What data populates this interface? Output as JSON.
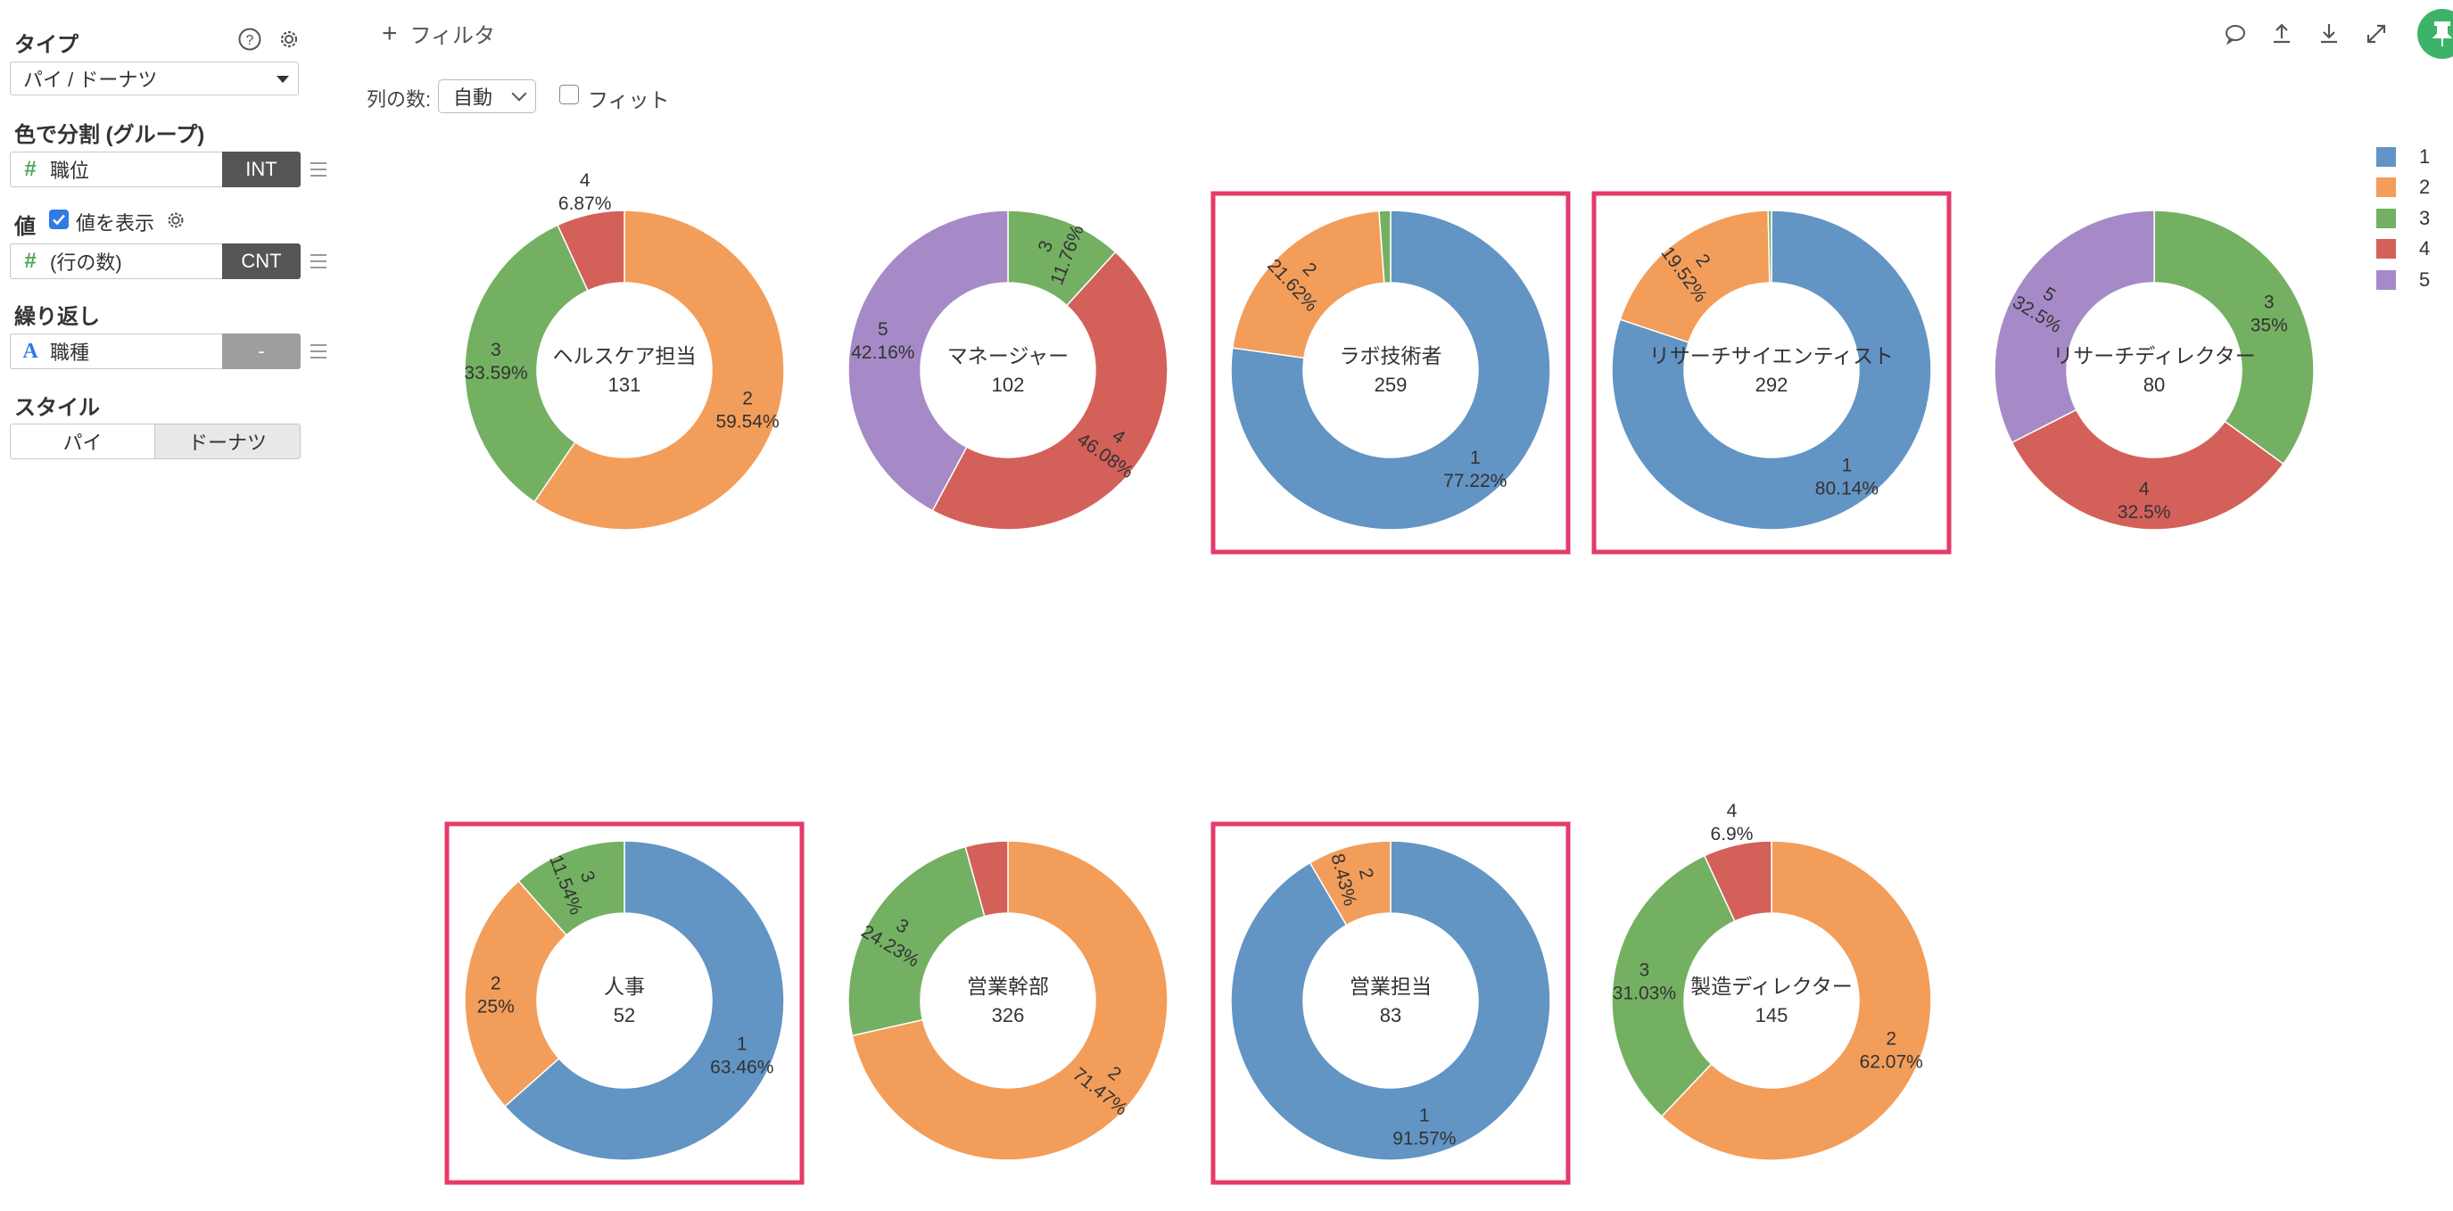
{
  "panel": {
    "type_label": "タイプ",
    "type_value": "パイ / ドーナツ",
    "group_label": "色で分割 (グループ)",
    "group_field": "職位",
    "group_tag": "INT",
    "value_label": "値",
    "show_value_label": "値を表示",
    "value_field": "(行の数)",
    "value_tag": "CNT",
    "repeat_label": "繰り返し",
    "repeat_field": "職種",
    "repeat_tag": "-",
    "style_label": "スタイル",
    "style_pie": "パイ",
    "style_donut": "ドーナツ"
  },
  "toolbar": {
    "filter_label": "フィルタ",
    "cols_label": "列の数:",
    "cols_value": "自動",
    "fit_label": "フィット"
  },
  "colors": {
    "1": "#6294c4",
    "2": "#f39d5a",
    "3": "#74b062",
    "4": "#d4605a",
    "5": "#a68ac7",
    "highlight": "#e53a6a",
    "tag_dark": "#555555",
    "tag_light": "#9e9e9e",
    "pin": "#3db36a"
  },
  "legend": [
    "1",
    "2",
    "3",
    "4",
    "5"
  ],
  "chart_data": {
    "type": "pie",
    "style": "donut",
    "legend_position": "top-right",
    "charts": [
      {
        "title": "ヘルスケア担当",
        "total": "131",
        "highlighted": false,
        "slices": [
          {
            "key": "2",
            "pct": "59.54%",
            "value": 59.54
          },
          {
            "key": "3",
            "pct": "33.59%",
            "value": 33.59
          },
          {
            "key": "4",
            "pct": "6.87%",
            "value": 6.87
          }
        ]
      },
      {
        "title": "マネージャー",
        "total": "102",
        "highlighted": false,
        "slices": [
          {
            "key": "3",
            "pct": "11.76%",
            "value": 11.76
          },
          {
            "key": "4",
            "pct": "46.08%",
            "value": 46.08
          },
          {
            "key": "5",
            "pct": "42.16%",
            "value": 42.16
          }
        ]
      },
      {
        "title": "ラボ技術者",
        "total": "259",
        "highlighted": true,
        "slices": [
          {
            "key": "1",
            "pct": "77.22%",
            "value": 77.22
          },
          {
            "key": "2",
            "pct": "21.62%",
            "value": 21.62
          },
          {
            "key": "3",
            "pct": "",
            "value": 1.16
          }
        ]
      },
      {
        "title": "リサーチサイエンティスト",
        "total": "292",
        "highlighted": true,
        "slices": [
          {
            "key": "1",
            "pct": "80.14%",
            "value": 80.14
          },
          {
            "key": "2",
            "pct": "19.52%",
            "value": 19.52
          },
          {
            "key": "3",
            "pct": "",
            "value": 0.34
          }
        ]
      },
      {
        "title": "リサーチディレクター",
        "total": "80",
        "highlighted": false,
        "slices": [
          {
            "key": "3",
            "pct": "35%",
            "value": 35
          },
          {
            "key": "4",
            "pct": "32.5%",
            "value": 32.5
          },
          {
            "key": "5",
            "pct": "32.5%",
            "value": 32.5
          }
        ]
      },
      {
        "title": "人事",
        "total": "52",
        "highlighted": true,
        "slices": [
          {
            "key": "1",
            "pct": "63.46%",
            "value": 63.46
          },
          {
            "key": "2",
            "pct": "25%",
            "value": 25
          },
          {
            "key": "3",
            "pct": "11.54%",
            "value": 11.54
          }
        ]
      },
      {
        "title": "営業幹部",
        "total": "326",
        "highlighted": false,
        "slices": [
          {
            "key": "2",
            "pct": "71.47%",
            "value": 71.47
          },
          {
            "key": "3",
            "pct": "24.23%",
            "value": 24.23
          },
          {
            "key": "4",
            "pct": "",
            "value": 4.3
          }
        ]
      },
      {
        "title": "営業担当",
        "total": "83",
        "highlighted": true,
        "slices": [
          {
            "key": "1",
            "pct": "91.57%",
            "value": 91.57
          },
          {
            "key": "2",
            "pct": "8.43%",
            "value": 8.43
          }
        ]
      },
      {
        "title": "製造ディレクター",
        "total": "145",
        "highlighted": false,
        "slices": [
          {
            "key": "2",
            "pct": "62.07%",
            "value": 62.07
          },
          {
            "key": "3",
            "pct": "31.03%",
            "value": 31.03
          },
          {
            "key": "4",
            "pct": "6.9%",
            "value": 6.9
          }
        ]
      }
    ]
  }
}
